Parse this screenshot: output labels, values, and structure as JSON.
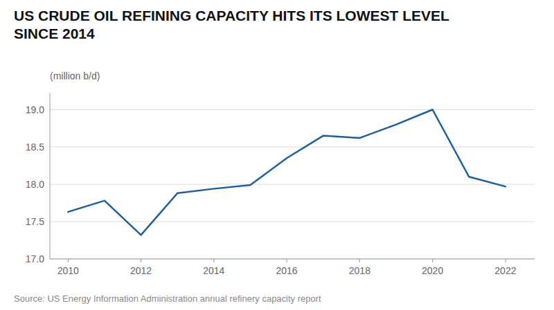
{
  "chart_data": {
    "type": "line",
    "title": "US CRUDE OIL REFINING CAPACITY HITS ITS LOWEST LEVEL\nSINCE 2014",
    "subtitle": "(million b/d)",
    "annotations": [
      "Source: US Energy Information Administration annual refinery capacity report"
    ],
    "x": [
      2010,
      2011,
      2012,
      2013,
      2014,
      2015,
      2016,
      2017,
      2018,
      2019,
      2020,
      2021,
      2022
    ],
    "values": [
      17.63,
      17.78,
      17.32,
      17.88,
      17.94,
      17.99,
      18.35,
      18.65,
      18.62,
      18.8,
      19.0,
      18.1,
      17.97
    ],
    "color": "#1a5f9e",
    "xlim": [
      2009.5,
      2022.8
    ],
    "ylim": [
      17.0,
      19.22
    ],
    "xticks": [
      2010,
      2012,
      2014,
      2016,
      2018,
      2020,
      2022
    ],
    "yticks": [
      {
        "value": 17.0,
        "label": "17.0"
      },
      17.5,
      {
        "value": 18.0,
        "label": "18.0"
      },
      18.5,
      {
        "value": 19.0,
        "label": "19.0"
      }
    ],
    "grid": true
  }
}
